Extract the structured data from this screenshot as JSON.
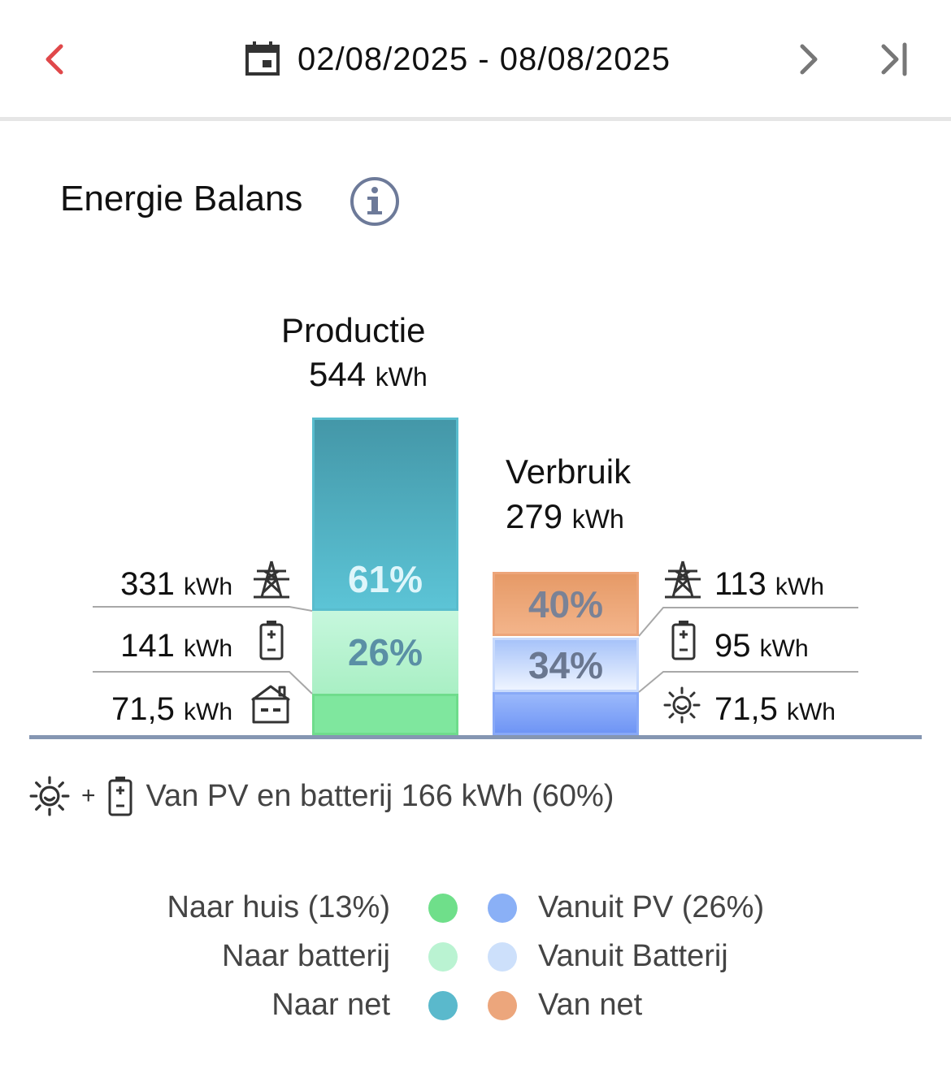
{
  "header": {
    "date_range": "02/08/2025 - 08/08/2025",
    "icons": {
      "prev": "chevron-left-icon",
      "calendar": "calendar-icon",
      "next": "chevron-right-icon",
      "last": "skip-to-end-icon"
    },
    "colors": {
      "prev": "#e0484a",
      "next": "#777777"
    }
  },
  "section": {
    "title": "Energie Balans",
    "info_icon": "info-icon"
  },
  "chart_data": {
    "type": "bar",
    "bars": [
      {
        "name": "Productie",
        "total": "544",
        "unit": "kWh",
        "segments": [
          {
            "label": "Naar net",
            "percent_label": "61%",
            "kwh": 331,
            "color": "#4db3c6"
          },
          {
            "label": "Naar batterij",
            "percent_label": "26%",
            "kwh": 141,
            "color": "#b9f2d0"
          },
          {
            "label": "Naar huis",
            "percent_label": "",
            "kwh": 71.5,
            "color": "#7ae39b"
          }
        ]
      },
      {
        "name": "Verbruik",
        "total": "279",
        "unit": "kWh",
        "segments": [
          {
            "label": "Van net",
            "percent_label": "40%",
            "kwh": 113,
            "color": "#eca578"
          },
          {
            "label": "Vanuit Batterij",
            "percent_label": "34%",
            "kwh": 95,
            "color": "#cfdfff"
          },
          {
            "label": "Vanuit PV",
            "percent_label": "",
            "kwh": 71.5,
            "color": "#86a9f8"
          }
        ]
      }
    ],
    "side_values": {
      "left": [
        {
          "value": "331",
          "unit": "kWh",
          "icon": "power-tower-icon"
        },
        {
          "value": "141",
          "unit": "kWh",
          "icon": "battery-icon"
        },
        {
          "value": "71,5",
          "unit": "kWh",
          "icon": "house-icon"
        }
      ],
      "right": [
        {
          "value": "113",
          "unit": "kWh",
          "icon": "power-tower-icon"
        },
        {
          "value": "95",
          "unit": "kWh",
          "icon": "battery-icon"
        },
        {
          "value": "71,5",
          "unit": "kWh",
          "icon": "sun-icon"
        }
      ]
    }
  },
  "summary": {
    "plus": "+",
    "text": "Van PV en batterij 166 kWh (60%)",
    "icons": [
      "sun-icon",
      "battery-icon"
    ]
  },
  "legend": {
    "left": [
      {
        "label": "Naar huis (13%)",
        "color": "#6fdf8a"
      },
      {
        "label": "Naar batterij",
        "color": "#baf3d2"
      },
      {
        "label": "Naar net",
        "color": "#5ab9cc"
      }
    ],
    "right": [
      {
        "label": "Vanuit PV (26%)",
        "color": "#8ab0f6"
      },
      {
        "label": "Vanuit Batterij",
        "color": "#cde0fb"
      },
      {
        "label": "Van net",
        "color": "#eca67c"
      }
    ]
  }
}
